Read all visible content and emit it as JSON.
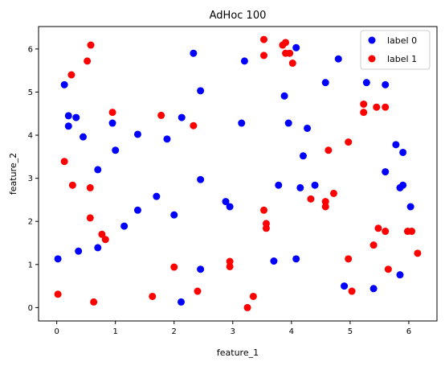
{
  "chart_data": {
    "type": "scatter",
    "title": "AdHoc 100",
    "xlabel": "feature_1",
    "ylabel": "feature_2",
    "xlim": [
      -0.31,
      6.48
    ],
    "ylim": [
      -0.31,
      6.52
    ],
    "xticks": [
      0,
      1,
      2,
      3,
      4,
      5,
      6
    ],
    "yticks": [
      0,
      1,
      2,
      3,
      4,
      5,
      6
    ],
    "grid": false,
    "legend": "top-right",
    "series": [
      {
        "name": "label 0",
        "color": "#0000ff",
        "points": [
          [
            0.13,
            5.17
          ],
          [
            0.2,
            4.45
          ],
          [
            0.33,
            4.41
          ],
          [
            0.2,
            4.21
          ],
          [
            0.45,
            3.96
          ],
          [
            0.95,
            4.28
          ],
          [
            1.0,
            3.65
          ],
          [
            0.7,
            3.2
          ],
          [
            1.38,
            4.02
          ],
          [
            1.88,
            3.91
          ],
          [
            2.13,
            4.41
          ],
          [
            2.33,
            5.9
          ],
          [
            2.45,
            5.03
          ],
          [
            2.45,
            2.97
          ],
          [
            1.7,
            2.58
          ],
          [
            1.38,
            2.26
          ],
          [
            2.0,
            2.15
          ],
          [
            1.15,
            1.89
          ],
          [
            0.37,
            1.31
          ],
          [
            0.7,
            1.39
          ],
          [
            0.02,
            1.13
          ],
          [
            2.12,
            0.13
          ],
          [
            2.45,
            0.89
          ],
          [
            3.15,
            4.28
          ],
          [
            3.2,
            5.72
          ],
          [
            3.88,
            4.91
          ],
          [
            4.08,
            6.03
          ],
          [
            3.95,
            4.28
          ],
          [
            4.27,
            4.16
          ],
          [
            4.2,
            3.52
          ],
          [
            4.15,
            2.78
          ],
          [
            4.4,
            2.84
          ],
          [
            3.78,
            2.84
          ],
          [
            2.88,
            2.46
          ],
          [
            2.95,
            2.34
          ],
          [
            3.7,
            1.08
          ],
          [
            4.08,
            1.13
          ],
          [
            4.58,
            5.22
          ],
          [
            4.8,
            5.77
          ],
          [
            5.28,
            5.22
          ],
          [
            5.6,
            5.17
          ],
          [
            5.6,
            3.15
          ],
          [
            5.78,
            3.78
          ],
          [
            5.9,
            3.6
          ],
          [
            5.85,
            2.78
          ],
          [
            5.9,
            2.84
          ],
          [
            6.03,
            2.34
          ],
          [
            5.85,
            0.76
          ],
          [
            4.9,
            0.5
          ],
          [
            5.4,
            0.44
          ]
        ]
      },
      {
        "name": "label 1",
        "color": "#ff0000",
        "points": [
          [
            0.25,
            5.4
          ],
          [
            0.58,
            6.09
          ],
          [
            0.52,
            5.72
          ],
          [
            0.95,
            4.53
          ],
          [
            1.78,
            4.46
          ],
          [
            2.33,
            4.22
          ],
          [
            0.13,
            3.39
          ],
          [
            0.27,
            2.84
          ],
          [
            0.57,
            2.78
          ],
          [
            0.57,
            2.08
          ],
          [
            0.77,
            1.7
          ],
          [
            0.83,
            1.58
          ],
          [
            0.02,
            0.31
          ],
          [
            0.63,
            0.13
          ],
          [
            1.63,
            0.26
          ],
          [
            2.0,
            0.94
          ],
          [
            2.4,
            0.38
          ],
          [
            2.95,
            1.07
          ],
          [
            2.95,
            0.95
          ],
          [
            3.35,
            0.26
          ],
          [
            3.25,
            0.0
          ],
          [
            3.53,
            6.22
          ],
          [
            3.53,
            5.85
          ],
          [
            3.85,
            6.09
          ],
          [
            3.9,
            6.15
          ],
          [
            3.9,
            5.9
          ],
          [
            3.97,
            5.9
          ],
          [
            4.02,
            5.67
          ],
          [
            3.53,
            2.26
          ],
          [
            3.57,
            1.95
          ],
          [
            3.57,
            1.84
          ],
          [
            4.33,
            2.52
          ],
          [
            4.58,
            2.46
          ],
          [
            4.58,
            2.34
          ],
          [
            4.72,
            2.65
          ],
          [
            4.63,
            3.65
          ],
          [
            4.97,
            3.84
          ],
          [
            5.23,
            4.72
          ],
          [
            5.23,
            4.53
          ],
          [
            5.45,
            4.65
          ],
          [
            5.6,
            4.65
          ],
          [
            4.97,
            1.13
          ],
          [
            5.03,
            0.38
          ],
          [
            5.4,
            1.45
          ],
          [
            5.48,
            1.84
          ],
          [
            5.6,
            1.77
          ],
          [
            5.98,
            1.77
          ],
          [
            6.05,
            1.77
          ],
          [
            5.65,
            0.89
          ],
          [
            6.15,
            1.26
          ]
        ]
      }
    ]
  }
}
